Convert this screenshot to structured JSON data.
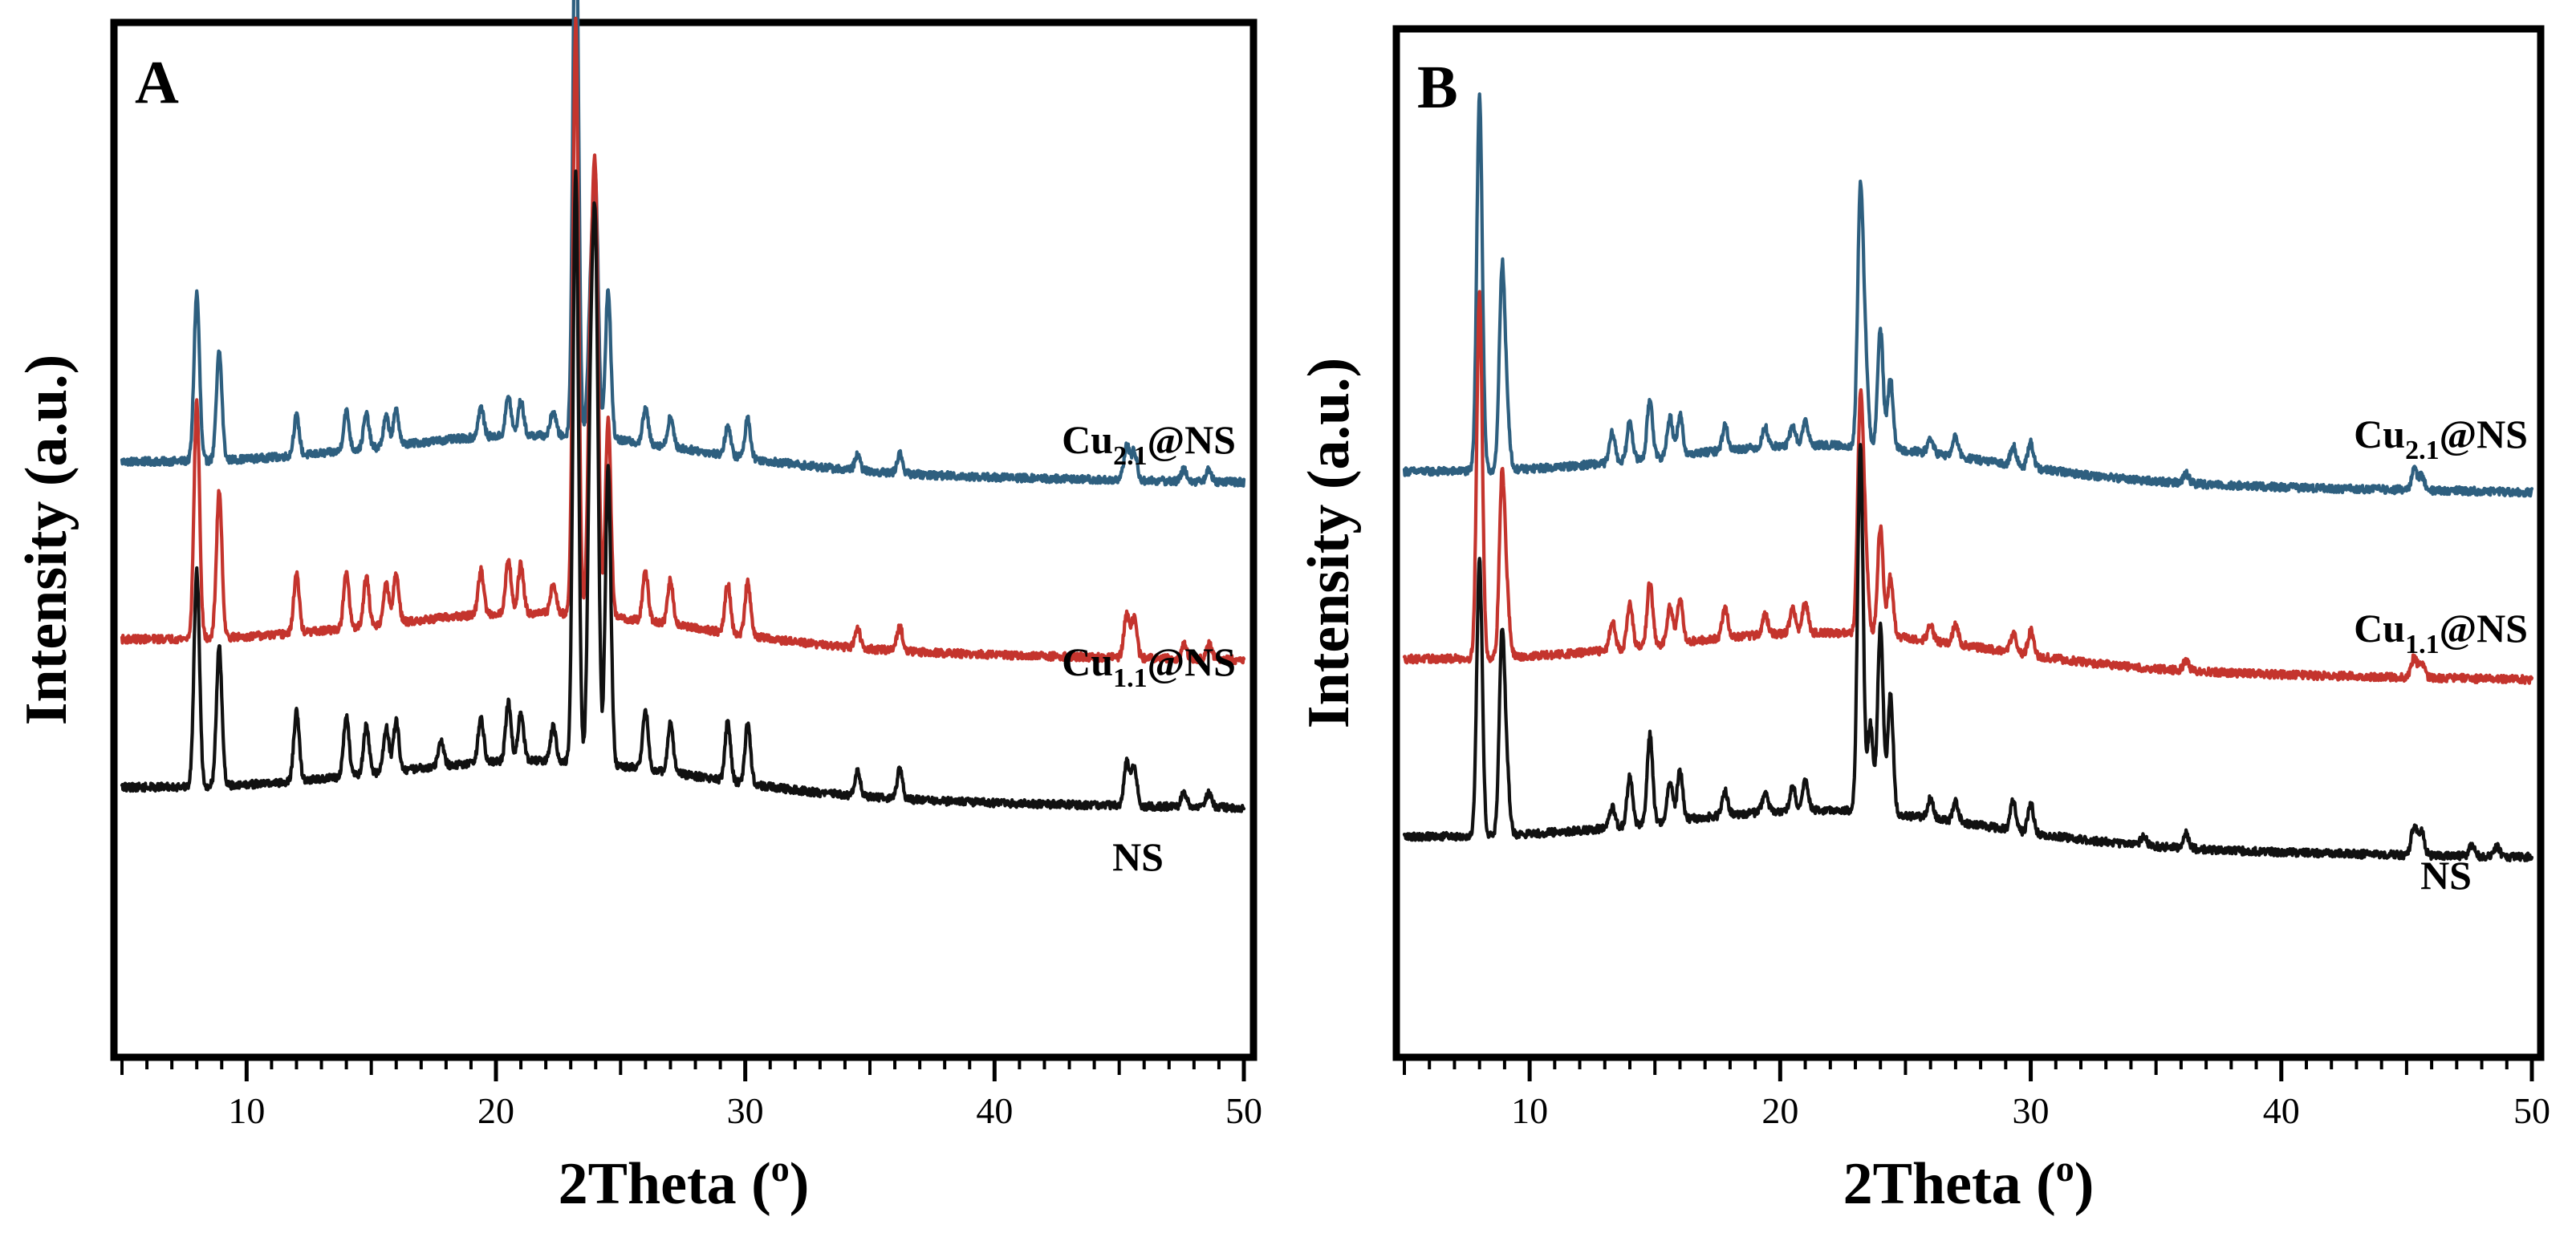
{
  "chart_data": [
    {
      "panel": "A",
      "type": "line",
      "xlabel": "2Theta (o)",
      "xlabel_main": "2Theta (",
      "xlabel_sup": "o",
      "xlabel_close": ")",
      "ylabel": "Intensity (a.u.)",
      "xlim": [
        5,
        50
      ],
      "xticks": [
        10,
        20,
        30,
        40,
        50
      ],
      "y_ticks_shown": false,
      "grid": false,
      "series": [
        {
          "name": "Cu2.1@NS",
          "label_main": "Cu",
          "label_sub": "2.1",
          "label_suffix": "@NS",
          "color": "#2e5f7f",
          "baseline": 0.58,
          "peaks": [
            [
              8.0,
              0.17
            ],
            [
              8.9,
              0.11
            ],
            [
              12.0,
              0.04
            ],
            [
              14.0,
              0.04
            ],
            [
              14.8,
              0.035
            ],
            [
              15.6,
              0.03
            ],
            [
              16.0,
              0.035
            ],
            [
              19.4,
              0.03
            ],
            [
              20.5,
              0.04
            ],
            [
              21.0,
              0.035
            ],
            [
              22.3,
              0.025
            ],
            [
              23.2,
              0.58
            ],
            [
              23.8,
              0.13
            ],
            [
              24.0,
              0.24
            ],
            [
              24.5,
              0.15
            ],
            [
              26.0,
              0.035
            ],
            [
              27.0,
              0.03
            ],
            [
              29.3,
              0.03
            ],
            [
              30.1,
              0.04
            ],
            [
              34.5,
              0.015
            ],
            [
              36.2,
              0.02
            ],
            [
              45.3,
              0.035
            ],
            [
              45.6,
              0.03
            ],
            [
              47.6,
              0.012
            ],
            [
              48.6,
              0.012
            ]
          ]
        },
        {
          "name": "Cu1.1@NS",
          "label_main": "Cu",
          "label_sub": "1.1",
          "label_suffix": "@NS",
          "color": "#c4342d",
          "baseline": 0.4,
          "peaks": [
            [
              8.0,
              0.24
            ],
            [
              8.9,
              0.15
            ],
            [
              12.0,
              0.06
            ],
            [
              14.0,
              0.055
            ],
            [
              14.8,
              0.05
            ],
            [
              15.6,
              0.04
            ],
            [
              16.0,
              0.05
            ],
            [
              19.4,
              0.045
            ],
            [
              20.5,
              0.055
            ],
            [
              21.0,
              0.05
            ],
            [
              22.3,
              0.03
            ],
            [
              23.2,
              0.6
            ],
            [
              23.8,
              0.26
            ],
            [
              24.0,
              0.4
            ],
            [
              24.5,
              0.2
            ],
            [
              26.0,
              0.05
            ],
            [
              27.0,
              0.045
            ],
            [
              29.3,
              0.05
            ],
            [
              30.1,
              0.055
            ],
            [
              34.5,
              0.02
            ],
            [
              36.2,
              0.025
            ],
            [
              45.3,
              0.045
            ],
            [
              45.6,
              0.04
            ],
            [
              47.6,
              0.015
            ],
            [
              48.6,
              0.015
            ]
          ]
        },
        {
          "name": "NS",
          "label_main": "NS",
          "label_sub": "",
          "label_suffix": "",
          "color": "#111111",
          "baseline": 0.25,
          "peaks": [
            [
              8.0,
              0.22
            ],
            [
              8.9,
              0.14
            ],
            [
              12.0,
              0.07
            ],
            [
              14.0,
              0.06
            ],
            [
              14.8,
              0.05
            ],
            [
              15.6,
              0.045
            ],
            [
              16.0,
              0.05
            ],
            [
              17.8,
              0.025
            ],
            [
              19.4,
              0.045
            ],
            [
              20.5,
              0.06
            ],
            [
              21.0,
              0.05
            ],
            [
              22.3,
              0.035
            ],
            [
              23.2,
              0.6
            ],
            [
              23.8,
              0.34
            ],
            [
              24.0,
              0.48
            ],
            [
              24.5,
              0.3
            ],
            [
              26.0,
              0.06
            ],
            [
              27.0,
              0.05
            ],
            [
              29.3,
              0.06
            ],
            [
              30.1,
              0.06
            ],
            [
              34.5,
              0.025
            ],
            [
              36.2,
              0.03
            ],
            [
              45.3,
              0.045
            ],
            [
              45.6,
              0.04
            ],
            [
              47.6,
              0.015
            ],
            [
              48.6,
              0.015
            ]
          ]
        }
      ]
    },
    {
      "panel": "B",
      "type": "line",
      "xlabel": "2Theta (o)",
      "xlabel_main": "2Theta (",
      "xlabel_sup": "o",
      "xlabel_close": ")",
      "ylabel": "Intensity (a.u.)",
      "xlim": [
        5,
        50
      ],
      "xticks": [
        10,
        20,
        30,
        40,
        50
      ],
      "y_ticks_shown": false,
      "grid": false,
      "series": [
        {
          "name": "Cu2.1@NS",
          "label_main": "Cu",
          "label_sub": "2.1",
          "label_suffix": "@NS",
          "color": "#2e5f7f",
          "baseline": 0.57,
          "peaks": [
            [
              8.0,
              0.38
            ],
            [
              8.9,
              0.2
            ],
            [
              9.1,
              0.05
            ],
            [
              13.3,
              0.03
            ],
            [
              14.0,
              0.04
            ],
            [
              14.8,
              0.06
            ],
            [
              15.6,
              0.04
            ],
            [
              16.0,
              0.04
            ],
            [
              17.8,
              0.025
            ],
            [
              19.4,
              0.02
            ],
            [
              20.5,
              0.02
            ],
            [
              21.0,
              0.025
            ],
            [
              23.2,
              0.25
            ],
            [
              23.4,
              0.08
            ],
            [
              24.0,
              0.12
            ],
            [
              24.4,
              0.07
            ],
            [
              26.0,
              0.015
            ],
            [
              27.0,
              0.02
            ],
            [
              29.3,
              0.02
            ],
            [
              30.0,
              0.025
            ],
            [
              36.2,
              0.01
            ],
            [
              45.3,
              0.02
            ],
            [
              45.6,
              0.015
            ]
          ]
        },
        {
          "name": "Cu1.1@NS",
          "label_main": "Cu",
          "label_sub": "1.1",
          "label_suffix": "@NS",
          "color": "#c4342d",
          "baseline": 0.38,
          "peaks": [
            [
              8.0,
              0.37
            ],
            [
              8.9,
              0.18
            ],
            [
              9.1,
              0.05
            ],
            [
              13.3,
              0.03
            ],
            [
              14.0,
              0.045
            ],
            [
              14.8,
              0.065
            ],
            [
              15.6,
              0.04
            ],
            [
              16.0,
              0.045
            ],
            [
              17.8,
              0.03
            ],
            [
              19.4,
              0.02
            ],
            [
              20.5,
              0.025
            ],
            [
              21.0,
              0.03
            ],
            [
              23.2,
              0.23
            ],
            [
              23.4,
              0.08
            ],
            [
              24.0,
              0.11
            ],
            [
              24.4,
              0.06
            ],
            [
              26.0,
              0.015
            ],
            [
              27.0,
              0.02
            ],
            [
              29.3,
              0.02
            ],
            [
              30.0,
              0.025
            ],
            [
              36.2,
              0.01
            ],
            [
              45.3,
              0.02
            ],
            [
              45.6,
              0.015
            ]
          ]
        },
        {
          "name": "NS",
          "label_main": "NS",
          "label_sub": "",
          "label_suffix": "",
          "color": "#111111",
          "baseline": 0.2,
          "peaks": [
            [
              8.0,
              0.28
            ],
            [
              8.9,
              0.2
            ],
            [
              9.1,
              0.05
            ],
            [
              13.3,
              0.02
            ],
            [
              14.0,
              0.05
            ],
            [
              14.8,
              0.09
            ],
            [
              15.6,
              0.04
            ],
            [
              16.0,
              0.05
            ],
            [
              17.8,
              0.025
            ],
            [
              19.4,
              0.02
            ],
            [
              20.5,
              0.025
            ],
            [
              21.0,
              0.03
            ],
            [
              23.2,
              0.37
            ],
            [
              23.6,
              0.09
            ],
            [
              24.0,
              0.19
            ],
            [
              24.4,
              0.12
            ],
            [
              26.0,
              0.02
            ],
            [
              27.0,
              0.02
            ],
            [
              29.3,
              0.03
            ],
            [
              30.0,
              0.03
            ],
            [
              34.5,
              0.01
            ],
            [
              36.2,
              0.015
            ],
            [
              45.3,
              0.03
            ],
            [
              45.6,
              0.025
            ],
            [
              47.6,
              0.01
            ],
            [
              48.6,
              0.01
            ]
          ]
        }
      ]
    }
  ]
}
